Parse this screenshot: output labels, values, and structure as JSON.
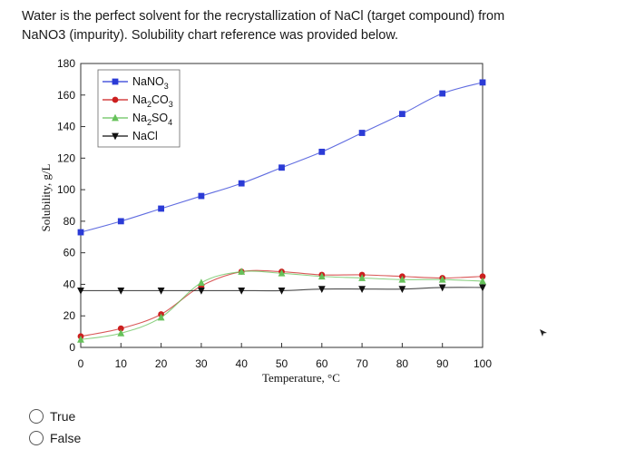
{
  "question": {
    "text": "Water is the perfect solvent for the recrystallization of NaCl (target compound) from NaNO3 (impurity). Solubility chart reference was provided below."
  },
  "answer_options": [
    {
      "label": "True"
    },
    {
      "label": "False"
    }
  ],
  "chart_data": {
    "type": "line",
    "xlabel": "Temperature, °C",
    "ylabel": "Solubility, g/L",
    "xlim": [
      0,
      100
    ],
    "ylim": [
      0,
      180
    ],
    "x_ticks": [
      "0",
      "10",
      "20",
      "30",
      "40",
      "50",
      "60",
      "70",
      "80",
      "90",
      "100"
    ],
    "y_ticks": [
      "0",
      "20",
      "40",
      "60",
      "80",
      "100",
      "120",
      "140",
      "160",
      "180"
    ],
    "legend": "top-left",
    "series": [
      {
        "name": "NaNO3",
        "name_parts": [
          "NaNO",
          "3",
          ""
        ],
        "color": "#2b3bd6",
        "marker": "square",
        "x": [
          0,
          10,
          20,
          30,
          40,
          50,
          60,
          70,
          80,
          90,
          100
        ],
        "y": [
          73,
          80,
          88,
          96,
          104,
          114,
          124,
          136,
          148,
          161,
          168
        ]
      },
      {
        "name": "Na2CO3",
        "name_parts": [
          "Na",
          "2",
          "CO",
          "3"
        ],
        "color": "#cc1f1f",
        "marker": "circle",
        "x": [
          0,
          10,
          20,
          30,
          40,
          50,
          60,
          70,
          80,
          90,
          100
        ],
        "y": [
          7,
          12,
          21,
          39,
          48,
          48,
          46,
          46,
          45,
          44,
          45
        ]
      },
      {
        "name": "Na2SO4",
        "name_parts": [
          "Na",
          "2",
          "SO",
          "4"
        ],
        "color": "#66c25a",
        "marker": "triangle-up",
        "x": [
          0,
          10,
          20,
          30,
          40,
          50,
          60,
          70,
          80,
          90,
          100
        ],
        "y": [
          5,
          9,
          19,
          41,
          48,
          47,
          45,
          44,
          43,
          43,
          42
        ]
      },
      {
        "name": "NaCl",
        "name_parts": [
          "NaCl"
        ],
        "color": "#111111",
        "marker": "triangle-down",
        "x": [
          0,
          10,
          20,
          30,
          40,
          50,
          60,
          70,
          80,
          90,
          100
        ],
        "y": [
          36,
          36,
          36,
          36,
          36,
          36,
          37,
          37,
          37,
          38,
          38
        ]
      }
    ]
  }
}
